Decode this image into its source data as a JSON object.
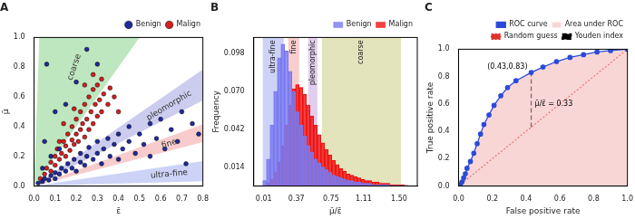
{
  "chart_data": [
    {
      "type": "scatter",
      "title": "A",
      "x_label": "ε̄",
      "y_label": "μ̄",
      "xlim": [
        0,
        0.8
      ],
      "ylim": [
        0,
        1.0
      ],
      "xticks": [
        {
          "value": 0,
          "label": "0.0"
        },
        0.1,
        0.2,
        0.3,
        0.4,
        0.5,
        0.6,
        0.7,
        0.8
      ],
      "yticks": [
        {
          "value": 0,
          "label": "0.0"
        },
        0.2,
        0.4,
        0.6,
        0.8,
        {
          "value": 1,
          "label": "1.0"
        }
      ],
      "grid": false,
      "legend": "top",
      "regions": [
        {
          "label": "coarse",
          "color": "#7fd07f",
          "ratio": [
            2.0,
            40
          ]
        },
        {
          "label": "pleomorphic",
          "color": "#9a9ae0",
          "ratio": [
            0.72,
            0.98
          ]
        },
        {
          "label": "fine",
          "color": "#f29a9a",
          "ratio": [
            0.37,
            0.52
          ]
        },
        {
          "label": "ultra-fine",
          "color": "#9aa8f0",
          "ratio": [
            0.04,
            0.21
          ]
        }
      ],
      "series": [
        {
          "name": "Benign",
          "color": "#1f2a9c",
          "marker": "circle",
          "x": [
            0.02,
            0.04,
            0.05,
            0.07,
            0.08,
            0.1,
            0.1,
            0.12,
            0.13,
            0.15,
            0.16,
            0.18,
            0.19,
            0.2,
            0.22,
            0.22,
            0.24,
            0.25,
            0.26,
            0.28,
            0.3,
            0.3,
            0.32,
            0.33,
            0.35,
            0.36,
            0.38,
            0.4,
            0.4,
            0.42,
            0.45,
            0.45,
            0.48,
            0.5,
            0.52,
            0.55,
            0.55,
            0.58,
            0.6,
            0.62,
            0.65,
            0.68,
            0.7,
            0.72,
            0.75,
            0.78,
            0.12,
            0.08,
            0.04,
            0.15,
            0.05,
            0.2,
            0.1,
            0.3,
            0.25,
            0.06
          ],
          "values": [
            0.02,
            0.03,
            0.05,
            0.04,
            0.07,
            0.05,
            0.09,
            0.08,
            0.12,
            0.1,
            0.15,
            0.12,
            0.18,
            0.1,
            0.16,
            0.22,
            0.14,
            0.2,
            0.26,
            0.18,
            0.22,
            0.3,
            0.15,
            0.25,
            0.32,
            0.2,
            0.28,
            0.35,
            0.18,
            0.25,
            0.3,
            0.4,
            0.22,
            0.35,
            0.28,
            0.42,
            0.2,
            0.32,
            0.45,
            0.25,
            0.38,
            0.3,
            0.5,
            0.15,
            0.42,
            0.35,
            0.25,
            0.2,
            0.12,
            0.55,
            0.3,
            0.7,
            0.5,
            0.82,
            0.92,
            0.82
          ]
        },
        {
          "name": "Malign",
          "color": "#d42020",
          "marker": "circle",
          "x": [
            0.03,
            0.05,
            0.06,
            0.08,
            0.08,
            0.1,
            0.1,
            0.11,
            0.12,
            0.13,
            0.14,
            0.15,
            0.15,
            0.16,
            0.17,
            0.18,
            0.18,
            0.19,
            0.2,
            0.2,
            0.21,
            0.22,
            0.22,
            0.23,
            0.24,
            0.24,
            0.25,
            0.26,
            0.26,
            0.27,
            0.28,
            0.28,
            0.29,
            0.3,
            0.3,
            0.31,
            0.32,
            0.32,
            0.33,
            0.35,
            0.36,
            0.38,
            0.4,
            0.19,
            0.14,
            0.24,
            0.28,
            0.12
          ],
          "values": [
            0.05,
            0.08,
            0.12,
            0.1,
            0.16,
            0.14,
            0.2,
            0.25,
            0.18,
            0.22,
            0.3,
            0.2,
            0.27,
            0.35,
            0.24,
            0.31,
            0.4,
            0.28,
            0.35,
            0.45,
            0.3,
            0.38,
            0.5,
            0.42,
            0.33,
            0.55,
            0.45,
            0.38,
            0.6,
            0.5,
            0.42,
            0.65,
            0.55,
            0.47,
            0.68,
            0.58,
            0.5,
            0.72,
            0.62,
            0.55,
            0.66,
            0.6,
            0.5,
            0.52,
            0.42,
            0.68,
            0.75,
            0.3
          ]
        }
      ]
    },
    {
      "type": "histogram",
      "title": "B",
      "x_label": "μ̄/ε̄",
      "y_label": "Frequency",
      "xlim": [
        -0.1,
        1.7
      ],
      "ylim": [
        0,
        0.11
      ],
      "xticks": [
        0.01,
        0.37,
        0.75,
        1.11,
        {
          "value": 1.5,
          "label": "1.50"
        }
      ],
      "yticks": [
        0.014,
        0.042,
        {
          "value": 0.07,
          "label": "0.070"
        },
        0.098
      ],
      "grid": false,
      "legend": "top",
      "regions": [
        {
          "label": "ultra-fine",
          "color": "#b8bff5",
          "range": [
            0.0,
            0.23
          ]
        },
        {
          "label": "fine",
          "color": "#f5b8b8",
          "range": [
            0.28,
            0.4
          ]
        },
        {
          "label": "pleomorphic",
          "color": "#d6b8e8",
          "range": [
            0.5,
            0.6
          ]
        },
        {
          "label": "coarse",
          "color": "#d8d8a0",
          "range": [
            0.65,
            1.52
          ]
        }
      ],
      "bins": [
        0,
        0.04,
        0.08,
        0.12,
        0.16,
        0.2,
        0.24,
        0.28,
        0.32,
        0.36,
        0.4,
        0.44,
        0.48,
        0.52,
        0.56,
        0.6,
        0.64,
        0.68,
        0.72,
        0.76,
        0.8,
        0.84,
        0.88,
        0.92,
        0.96,
        1,
        1.04,
        1.08,
        1.12,
        1.16,
        1.2,
        1.24,
        1.28,
        1.32,
        1.36,
        1.4,
        1.44,
        1.48,
        1.52,
        1.56,
        1.6
      ],
      "series": [
        {
          "name": "Benign",
          "color": "#7878f0",
          "values": [
            0.004,
            0.02,
            0.045,
            0.07,
            0.095,
            0.105,
            0.1,
            0.085,
            0.07,
            0.055,
            0.045,
            0.037,
            0.03,
            0.025,
            0.02,
            0.017,
            0.014,
            0.012,
            0.01,
            0.008,
            0.007,
            0.006,
            0.005,
            0.004,
            0.004,
            0.003,
            0.003,
            0.002,
            0.002,
            0.002,
            0.001,
            0.001,
            0.001,
            0.001,
            0.001,
            0.0005,
            0.0005,
            0.0005,
            0.0003,
            0.0003
          ]
        },
        {
          "name": "Malign",
          "color": "#f01010",
          "values": [
            0.0005,
            0.002,
            0.005,
            0.01,
            0.018,
            0.03,
            0.045,
            0.06,
            0.072,
            0.075,
            0.073,
            0.068,
            0.06,
            0.052,
            0.045,
            0.038,
            0.032,
            0.027,
            0.023,
            0.019,
            0.016,
            0.013,
            0.011,
            0.009,
            0.008,
            0.007,
            0.006,
            0.005,
            0.004,
            0.004,
            0.003,
            0.003,
            0.002,
            0.002,
            0.002,
            0.001,
            0.001,
            0.001,
            0.001,
            0.0005
          ]
        }
      ]
    },
    {
      "type": "line",
      "title": "C",
      "x_label": "False positive rate",
      "y_label": "True positive rate",
      "xlim": [
        0,
        1
      ],
      "ylim": [
        0,
        1
      ],
      "xticks": [
        {
          "value": 0,
          "label": "0.0"
        },
        0.2,
        0.4,
        0.6,
        0.8,
        {
          "value": 1,
          "label": "1.0"
        }
      ],
      "yticks": [
        {
          "value": 0,
          "label": "0.0"
        },
        0.2,
        0.4,
        0.6,
        0.8,
        {
          "value": 1,
          "label": "1.0"
        }
      ],
      "grid": false,
      "legend": "top",
      "series": [
        {
          "name": "ROC curve",
          "color": "#2a4bd7",
          "marker": "circle",
          "line_style": "solid",
          "x": [
            0,
            0.01,
            0.02,
            0.03,
            0.04,
            0.05,
            0.07,
            0.09,
            0.11,
            0.13,
            0.15,
            0.18,
            0.21,
            0.25,
            0.29,
            0.34,
            0.43,
            0.5,
            0.58,
            0.66,
            0.74,
            0.82,
            0.9,
            1
          ],
          "values": [
            0,
            0.01,
            0.03,
            0.06,
            0.09,
            0.13,
            0.18,
            0.24,
            0.31,
            0.38,
            0.45,
            0.52,
            0.59,
            0.66,
            0.72,
            0.77,
            0.83,
            0.87,
            0.91,
            0.94,
            0.96,
            0.98,
            0.99,
            1
          ]
        },
        {
          "name": "Area under ROC",
          "color": "#f4b4b4",
          "type": "area",
          "x": [
            0,
            0.01,
            0.02,
            0.03,
            0.04,
            0.05,
            0.07,
            0.09,
            0.11,
            0.13,
            0.15,
            0.18,
            0.21,
            0.25,
            0.29,
            0.34,
            0.43,
            0.5,
            0.58,
            0.66,
            0.74,
            0.82,
            0.9,
            1
          ],
          "values": [
            0,
            0.01,
            0.03,
            0.06,
            0.09,
            0.13,
            0.18,
            0.24,
            0.31,
            0.38,
            0.45,
            0.52,
            0.59,
            0.66,
            0.72,
            0.77,
            0.83,
            0.87,
            0.91,
            0.94,
            0.96,
            0.98,
            0.99,
            1
          ]
        },
        {
          "name": "Random guess",
          "color": "#e03030",
          "line_style": "dotted",
          "x": [
            0,
            1
          ],
          "values": [
            0,
            1
          ]
        },
        {
          "name": "Youden index",
          "color": "#000000",
          "line_style": "dashed",
          "x": [
            0.43,
            0.43
          ],
          "values": [
            0.43,
            0.83
          ]
        }
      ],
      "annotations": [
        {
          "text": "(0.43,0.83)",
          "x": 0.43,
          "y": 0.83
        },
        {
          "text": "μ̄/ε̄ = 0.33",
          "x": 0.43,
          "y": 0.6
        }
      ]
    }
  ]
}
